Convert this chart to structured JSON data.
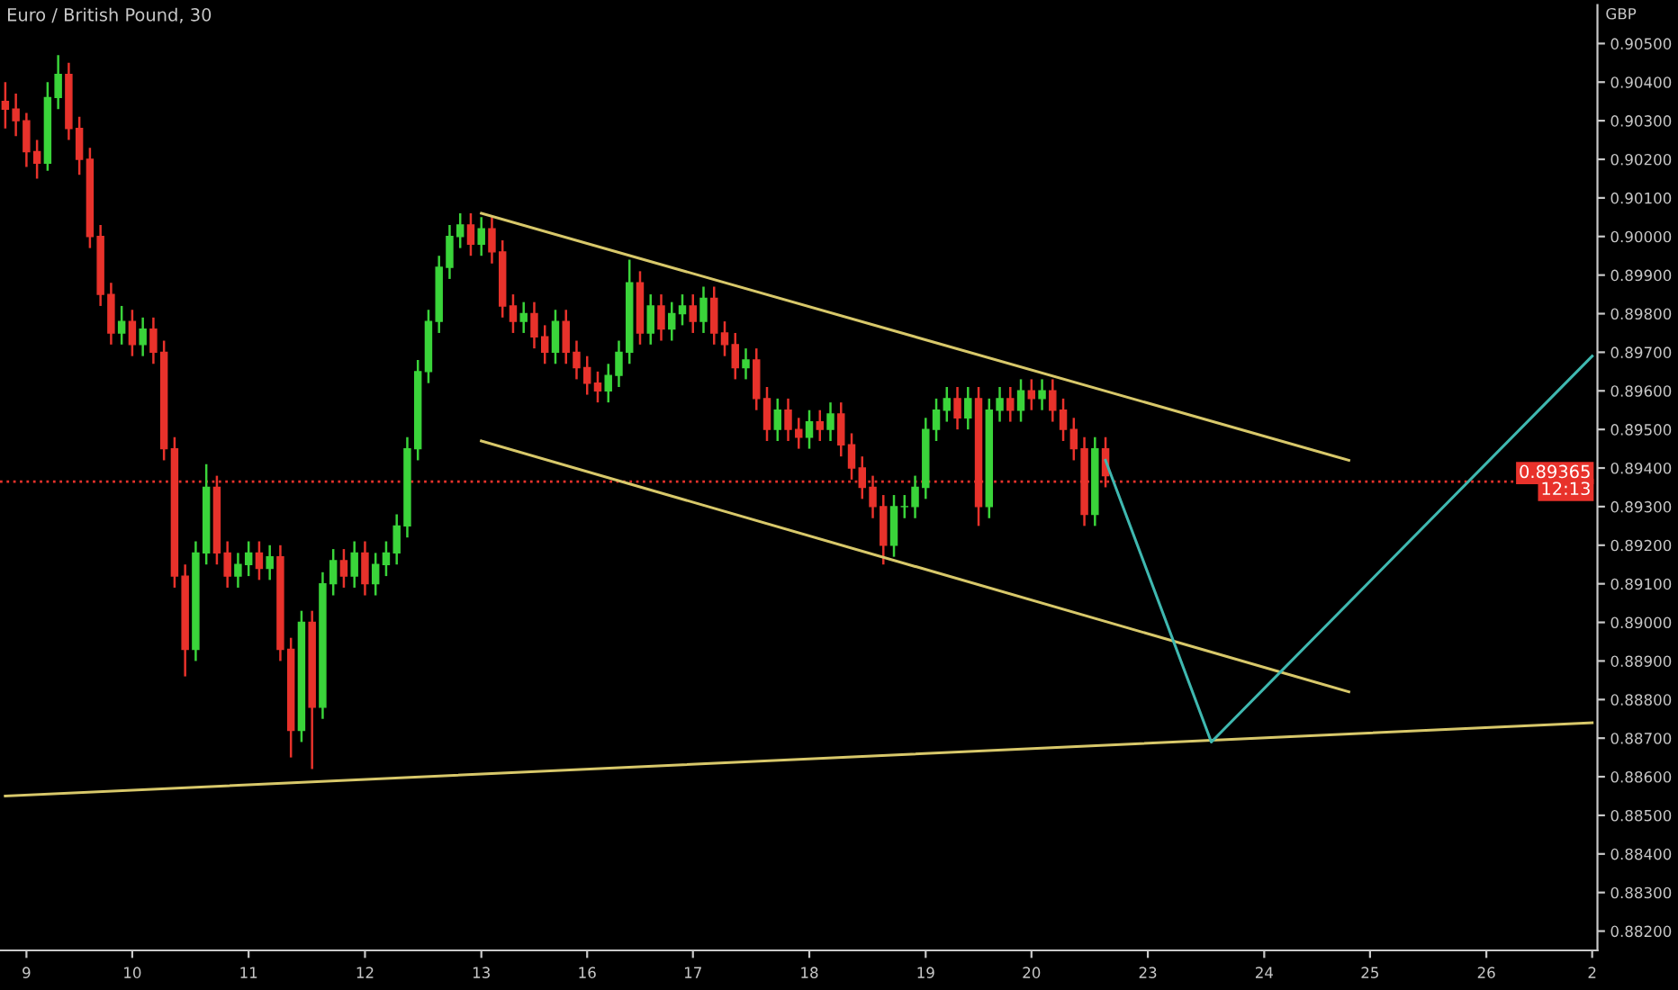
{
  "chart_data": {
    "type": "candlestick",
    "title": "Euro / British Pound, 30",
    "ylabel": "GBP",
    "categories": [
      null,
      null,
      "9",
      null,
      null,
      null,
      null,
      null,
      null,
      null,
      null,
      null,
      "10",
      null,
      null,
      null,
      null,
      null,
      null,
      null,
      null,
      null,
      null,
      "11",
      null,
      null,
      null,
      null,
      null,
      null,
      null,
      null,
      null,
      null,
      "12",
      null,
      null,
      null,
      null,
      null,
      null,
      null,
      null,
      null,
      null,
      "13",
      null,
      null,
      null,
      null,
      null,
      null,
      null,
      null,
      null,
      "16",
      null,
      null,
      null,
      null,
      null,
      null,
      null,
      null,
      null,
      "17",
      null,
      null,
      null,
      null,
      null,
      null,
      null,
      null,
      null,
      null,
      "18",
      null,
      null,
      null,
      null,
      null,
      null,
      null,
      null,
      null,
      null,
      "19",
      null,
      null,
      null,
      null,
      null,
      null,
      null,
      null,
      null,
      "20",
      null,
      null,
      null,
      null,
      null,
      null,
      null,
      null,
      null,
      null,
      "23",
      null,
      null,
      null,
      null,
      null,
      null,
      null,
      null,
      null,
      null,
      "24",
      null,
      null,
      null,
      null,
      null,
      null,
      null,
      null,
      null,
      "25",
      null,
      null,
      null,
      null,
      null,
      null,
      null,
      null,
      null,
      null,
      "26",
      null,
      null,
      null,
      null,
      null,
      null,
      null,
      null,
      null,
      "2"
    ],
    "ohlc": [
      [
        0.9035,
        0.904,
        0.9028,
        0.9033
      ],
      [
        0.9033,
        0.9037,
        0.9026,
        0.903
      ],
      [
        0.903,
        0.9032,
        0.9018,
        0.9022
      ],
      [
        0.9022,
        0.9025,
        0.9015,
        0.9019
      ],
      [
        0.9019,
        0.904,
        0.9017,
        0.9036
      ],
      [
        0.9036,
        0.9047,
        0.9033,
        0.9042
      ],
      [
        0.9042,
        0.9045,
        0.9025,
        0.9028
      ],
      [
        0.9028,
        0.9031,
        0.9016,
        0.902
      ],
      [
        0.902,
        0.9023,
        0.8997,
        0.9
      ],
      [
        0.9,
        0.9003,
        0.8982,
        0.8985
      ],
      [
        0.8985,
        0.8988,
        0.8972,
        0.8975
      ],
      [
        0.8975,
        0.8982,
        0.8972,
        0.8978
      ],
      [
        0.8978,
        0.8981,
        0.8969,
        0.8972
      ],
      [
        0.8972,
        0.8979,
        0.8969,
        0.8976
      ],
      [
        0.8976,
        0.8979,
        0.8967,
        0.897
      ],
      [
        0.897,
        0.8973,
        0.8942,
        0.8945
      ],
      [
        0.8945,
        0.8948,
        0.8909,
        0.8912
      ],
      [
        0.8912,
        0.8915,
        0.8886,
        0.8893
      ],
      [
        0.8893,
        0.8921,
        0.889,
        0.8918
      ],
      [
        0.8918,
        0.8941,
        0.8915,
        0.8935
      ],
      [
        0.8935,
        0.8938,
        0.8915,
        0.8918
      ],
      [
        0.8918,
        0.8921,
        0.8909,
        0.8912
      ],
      [
        0.8912,
        0.8918,
        0.8909,
        0.8915
      ],
      [
        0.8915,
        0.8921,
        0.8912,
        0.8918
      ],
      [
        0.8918,
        0.8921,
        0.8911,
        0.8914
      ],
      [
        0.8914,
        0.892,
        0.8911,
        0.8917
      ],
      [
        0.8917,
        0.892,
        0.889,
        0.8893
      ],
      [
        0.8893,
        0.8896,
        0.8865,
        0.8872
      ],
      [
        0.8872,
        0.8903,
        0.8869,
        0.89
      ],
      [
        0.89,
        0.8903,
        0.8862,
        0.8878
      ],
      [
        0.8878,
        0.8913,
        0.8875,
        0.891
      ],
      [
        0.891,
        0.8919,
        0.8907,
        0.8916
      ],
      [
        0.8916,
        0.8919,
        0.8909,
        0.8912
      ],
      [
        0.8912,
        0.8921,
        0.8909,
        0.8918
      ],
      [
        0.8918,
        0.8921,
        0.8907,
        0.891
      ],
      [
        0.891,
        0.8918,
        0.8907,
        0.8915
      ],
      [
        0.8915,
        0.8921,
        0.8912,
        0.8918
      ],
      [
        0.8918,
        0.8928,
        0.8915,
        0.8925
      ],
      [
        0.8925,
        0.8948,
        0.8922,
        0.8945
      ],
      [
        0.8945,
        0.8968,
        0.8942,
        0.8965
      ],
      [
        0.8965,
        0.8981,
        0.8962,
        0.8978
      ],
      [
        0.8978,
        0.8995,
        0.8975,
        0.8992
      ],
      [
        0.8992,
        0.9003,
        0.8989,
        0.9
      ],
      [
        0.9,
        0.9006,
        0.8997,
        0.9003
      ],
      [
        0.9003,
        0.9006,
        0.8995,
        0.8998
      ],
      [
        0.8998,
        0.9005,
        0.8995,
        0.9002
      ],
      [
        0.9002,
        0.9005,
        0.8993,
        0.8996
      ],
      [
        0.8996,
        0.8999,
        0.8979,
        0.8982
      ],
      [
        0.8982,
        0.8985,
        0.8975,
        0.8978
      ],
      [
        0.8978,
        0.8983,
        0.8975,
        0.898
      ],
      [
        0.898,
        0.8983,
        0.8971,
        0.8974
      ],
      [
        0.8974,
        0.8977,
        0.8967,
        0.897
      ],
      [
        0.897,
        0.8981,
        0.8967,
        0.8978
      ],
      [
        0.8978,
        0.8981,
        0.8967,
        0.897
      ],
      [
        0.897,
        0.8973,
        0.8963,
        0.8966
      ],
      [
        0.8966,
        0.8969,
        0.8959,
        0.8962
      ],
      [
        0.8962,
        0.8965,
        0.8957,
        0.896
      ],
      [
        0.896,
        0.8967,
        0.8957,
        0.8964
      ],
      [
        0.8964,
        0.8973,
        0.8961,
        0.897
      ],
      [
        0.897,
        0.8994,
        0.8967,
        0.8988
      ],
      [
        0.8988,
        0.8991,
        0.8972,
        0.8975
      ],
      [
        0.8975,
        0.8985,
        0.8972,
        0.8982
      ],
      [
        0.8982,
        0.8985,
        0.8973,
        0.8976
      ],
      [
        0.8976,
        0.8983,
        0.8973,
        0.898
      ],
      [
        0.898,
        0.8985,
        0.8977,
        0.8982
      ],
      [
        0.8982,
        0.8985,
        0.8975,
        0.8978
      ],
      [
        0.8978,
        0.8987,
        0.8975,
        0.8984
      ],
      [
        0.8984,
        0.8987,
        0.8972,
        0.8975
      ],
      [
        0.8975,
        0.8978,
        0.8969,
        0.8972
      ],
      [
        0.8972,
        0.8975,
        0.8963,
        0.8966
      ],
      [
        0.8966,
        0.8971,
        0.8963,
        0.8968
      ],
      [
        0.8968,
        0.8971,
        0.8955,
        0.8958
      ],
      [
        0.8958,
        0.8961,
        0.8947,
        0.895
      ],
      [
        0.895,
        0.8958,
        0.8947,
        0.8955
      ],
      [
        0.8955,
        0.8958,
        0.8947,
        0.895
      ],
      [
        0.895,
        0.8953,
        0.8945,
        0.8948
      ],
      [
        0.8948,
        0.8955,
        0.8945,
        0.8952
      ],
      [
        0.8952,
        0.8955,
        0.8947,
        0.895
      ],
      [
        0.895,
        0.8957,
        0.8947,
        0.8954
      ],
      [
        0.8954,
        0.8957,
        0.8943,
        0.8946
      ],
      [
        0.8946,
        0.8949,
        0.8937,
        0.894
      ],
      [
        0.894,
        0.8943,
        0.8932,
        0.8935
      ],
      [
        0.8935,
        0.8938,
        0.8927,
        0.893
      ],
      [
        0.893,
        0.8933,
        0.8915,
        0.892
      ],
      [
        0.892,
        0.8933,
        0.8917,
        0.893
      ],
      [
        0.893,
        0.8933,
        0.8927,
        0.893
      ],
      [
        0.893,
        0.8938,
        0.8927,
        0.8935
      ],
      [
        0.8935,
        0.8953,
        0.8932,
        0.895
      ],
      [
        0.895,
        0.8958,
        0.8947,
        0.8955
      ],
      [
        0.8955,
        0.8961,
        0.8952,
        0.8958
      ],
      [
        0.8958,
        0.8961,
        0.895,
        0.8953
      ],
      [
        0.8953,
        0.8961,
        0.895,
        0.8958
      ],
      [
        0.8958,
        0.8961,
        0.8925,
        0.893
      ],
      [
        0.893,
        0.8958,
        0.8927,
        0.8955
      ],
      [
        0.8955,
        0.8961,
        0.8952,
        0.8958
      ],
      [
        0.8958,
        0.8961,
        0.8952,
        0.8955
      ],
      [
        0.8955,
        0.8963,
        0.8952,
        0.896
      ],
      [
        0.896,
        0.8963,
        0.8955,
        0.8958
      ],
      [
        0.8958,
        0.8963,
        0.8955,
        0.896
      ],
      [
        0.896,
        0.8963,
        0.8952,
        0.8955
      ],
      [
        0.8955,
        0.8958,
        0.8947,
        0.895
      ],
      [
        0.895,
        0.8953,
        0.8942,
        0.8945
      ],
      [
        0.8945,
        0.8948,
        0.8925,
        0.8928
      ],
      [
        0.8928,
        0.8948,
        0.8925,
        0.8945
      ],
      [
        0.8945,
        0.8948,
        0.8935,
        0.8938
      ],
      null,
      null,
      null,
      null,
      null,
      null,
      null,
      null,
      null,
      null,
      null,
      null,
      null,
      null,
      null,
      null,
      null,
      null,
      null,
      null,
      null,
      null,
      null,
      null,
      null,
      null,
      null,
      null,
      null,
      null,
      null,
      null,
      null,
      null,
      null,
      null,
      null,
      null,
      null,
      null,
      null,
      null,
      null,
      null,
      null,
      null
    ],
    "series": [
      {
        "type": "line",
        "color": "#d8c86a",
        "values": [
          null,
          null,
          null,
          null,
          null,
          null,
          null,
          null,
          null,
          null,
          null,
          null,
          null,
          null,
          null,
          null,
          null,
          null,
          null,
          null,
          null,
          null,
          null,
          null,
          null,
          null,
          null,
          null,
          null,
          null,
          null,
          null,
          null,
          null,
          null,
          null,
          null,
          null,
          null,
          null,
          null,
          null,
          null,
          null,
          null,
          0.9006,
          null,
          null,
          null,
          null,
          null,
          null,
          null,
          null,
          null,
          null,
          null,
          null,
          null,
          null,
          null,
          null,
          null,
          null,
          null,
          null,
          null,
          null,
          null,
          null,
          null,
          null,
          null,
          null,
          null,
          null,
          null,
          null,
          null,
          null,
          null,
          null,
          null,
          null,
          null,
          null,
          null,
          null,
          null,
          null,
          null,
          null,
          null,
          null,
          null,
          null,
          null,
          null,
          null,
          null,
          null,
          null,
          null,
          null,
          null,
          null,
          null,
          null,
          null,
          null,
          null,
          null,
          null,
          null,
          null,
          null,
          null,
          null,
          null,
          null,
          null,
          null,
          null,
          null,
          null,
          null,
          null,
          0.8942,
          null,
          null,
          null,
          null,
          null,
          null,
          null,
          null,
          null,
          null,
          null,
          null,
          null,
          null,
          null,
          null,
          null,
          null,
          null,
          null,
          null,
          null,
          null
        ]
      },
      {
        "type": "line",
        "color": "#d8c86a",
        "values": [
          null,
          null,
          null,
          null,
          null,
          null,
          null,
          null,
          null,
          null,
          null,
          null,
          null,
          null,
          null,
          null,
          null,
          null,
          null,
          null,
          null,
          null,
          null,
          null,
          null,
          null,
          null,
          null,
          null,
          null,
          null,
          null,
          null,
          null,
          null,
          null,
          null,
          null,
          null,
          null,
          null,
          null,
          null,
          null,
          null,
          0.8947,
          null,
          null,
          null,
          null,
          null,
          null,
          null,
          null,
          null,
          null,
          null,
          null,
          null,
          null,
          null,
          null,
          null,
          null,
          null,
          null,
          null,
          null,
          null,
          null,
          null,
          null,
          null,
          null,
          null,
          null,
          null,
          null,
          null,
          null,
          null,
          null,
          null,
          null,
          null,
          null,
          null,
          null,
          null,
          null,
          null,
          null,
          null,
          null,
          null,
          null,
          null,
          null,
          null,
          null,
          null,
          null,
          null,
          null,
          null,
          null,
          null,
          null,
          null,
          null,
          null,
          null,
          null,
          null,
          null,
          null,
          null,
          null,
          null,
          null,
          null,
          null,
          null,
          null,
          null,
          null,
          null,
          0.8882,
          null,
          null,
          null,
          null,
          null,
          null,
          null,
          null,
          null,
          null,
          null,
          null,
          null,
          null,
          null,
          null,
          null,
          null,
          null,
          null,
          null,
          null,
          null
        ]
      },
      {
        "type": "line",
        "color": "#d8c86a",
        "values": [
          0.8855,
          null,
          null,
          null,
          null,
          null,
          null,
          null,
          null,
          null,
          null,
          null,
          null,
          null,
          null,
          null,
          null,
          null,
          null,
          null,
          null,
          null,
          null,
          null,
          null,
          null,
          null,
          null,
          null,
          null,
          null,
          null,
          null,
          null,
          null,
          null,
          null,
          null,
          null,
          null,
          null,
          null,
          null,
          null,
          null,
          null,
          null,
          null,
          null,
          null,
          null,
          null,
          null,
          null,
          null,
          null,
          null,
          null,
          null,
          null,
          null,
          null,
          null,
          null,
          null,
          null,
          null,
          null,
          null,
          null,
          null,
          null,
          null,
          null,
          null,
          null,
          null,
          null,
          null,
          null,
          null,
          null,
          null,
          null,
          null,
          null,
          null,
          null,
          null,
          null,
          null,
          null,
          null,
          null,
          null,
          null,
          null,
          null,
          null,
          null,
          null,
          null,
          null,
          null,
          null,
          null,
          null,
          null,
          null,
          null,
          null,
          null,
          null,
          null,
          null,
          null,
          null,
          null,
          null,
          null,
          null,
          null,
          null,
          null,
          null,
          null,
          null,
          null,
          null,
          null,
          null,
          null,
          null,
          null,
          null,
          null,
          null,
          null,
          null,
          null,
          null,
          null,
          null,
          null,
          null,
          null,
          null,
          null,
          null,
          null,
          0.8874
        ]
      },
      {
        "type": "line",
        "color": "#3fb8b0",
        "values": [
          null,
          null,
          null,
          null,
          null,
          null,
          null,
          null,
          null,
          null,
          null,
          null,
          null,
          null,
          null,
          null,
          null,
          null,
          null,
          null,
          null,
          null,
          null,
          null,
          null,
          null,
          null,
          null,
          null,
          null,
          null,
          null,
          null,
          null,
          null,
          null,
          null,
          null,
          null,
          null,
          null,
          null,
          null,
          null,
          null,
          null,
          null,
          null,
          null,
          null,
          null,
          null,
          null,
          null,
          null,
          null,
          null,
          null,
          null,
          null,
          null,
          null,
          null,
          null,
          null,
          null,
          null,
          null,
          null,
          null,
          null,
          null,
          null,
          null,
          null,
          null,
          null,
          null,
          null,
          null,
          null,
          null,
          null,
          null,
          null,
          null,
          null,
          null,
          null,
          null,
          null,
          null,
          null,
          null,
          null,
          null,
          null,
          null,
          null,
          null,
          null,
          null,
          null,
          null,
          0.8942,
          null,
          null,
          null,
          null,
          null,
          null,
          null,
          null,
          null,
          0.8869,
          null,
          null,
          null,
          null,
          null,
          null,
          null,
          null,
          null,
          null,
          null,
          null,
          null,
          null,
          null,
          null,
          null,
          null,
          null,
          null,
          null,
          null,
          null,
          null,
          null,
          null,
          null,
          null,
          null,
          null,
          null,
          null,
          null,
          null,
          null,
          0.8969
        ]
      }
    ],
    "ref_lines": [
      {
        "axis": "y",
        "value": 0.89365,
        "label": "0.89365",
        "color": "#e8322b",
        "line_style": "dotted"
      }
    ],
    "annotations": [
      "12:13"
    ],
    "ylim": [
      0.8815,
      0.906
    ],
    "yticks": [
      {
        "value": 0.882,
        "label": "0.88200"
      },
      {
        "value": 0.883,
        "label": "0.88300"
      },
      {
        "value": 0.884,
        "label": "0.88400"
      },
      {
        "value": 0.885,
        "label": "0.88500"
      },
      {
        "value": 0.886,
        "label": "0.88600"
      },
      {
        "value": 0.887,
        "label": "0.88700"
      },
      {
        "value": 0.888,
        "label": "0.88800"
      },
      {
        "value": 0.889,
        "label": "0.88900"
      },
      {
        "value": 0.89,
        "label": "0.89000"
      },
      {
        "value": 0.891,
        "label": "0.89100"
      },
      {
        "value": 0.892,
        "label": "0.89200"
      },
      {
        "value": 0.893,
        "label": "0.89300"
      },
      {
        "value": 0.894,
        "label": "0.89400"
      },
      {
        "value": 0.895,
        "label": "0.89500"
      },
      {
        "value": 0.896,
        "label": "0.89600"
      },
      {
        "value": 0.897,
        "label": "0.89700"
      },
      {
        "value": 0.898,
        "label": "0.89800"
      },
      {
        "value": 0.899,
        "label": "0.89900"
      },
      {
        "value": 0.9,
        "label": "0.90000"
      },
      {
        "value": 0.901,
        "label": "0.90100"
      },
      {
        "value": 0.902,
        "label": "0.90200"
      },
      {
        "value": 0.903,
        "label": "0.90300"
      },
      {
        "value": 0.904,
        "label": "0.90400"
      },
      {
        "value": 0.905,
        "label": "0.90500"
      }
    ],
    "grid": false,
    "legend": false
  }
}
